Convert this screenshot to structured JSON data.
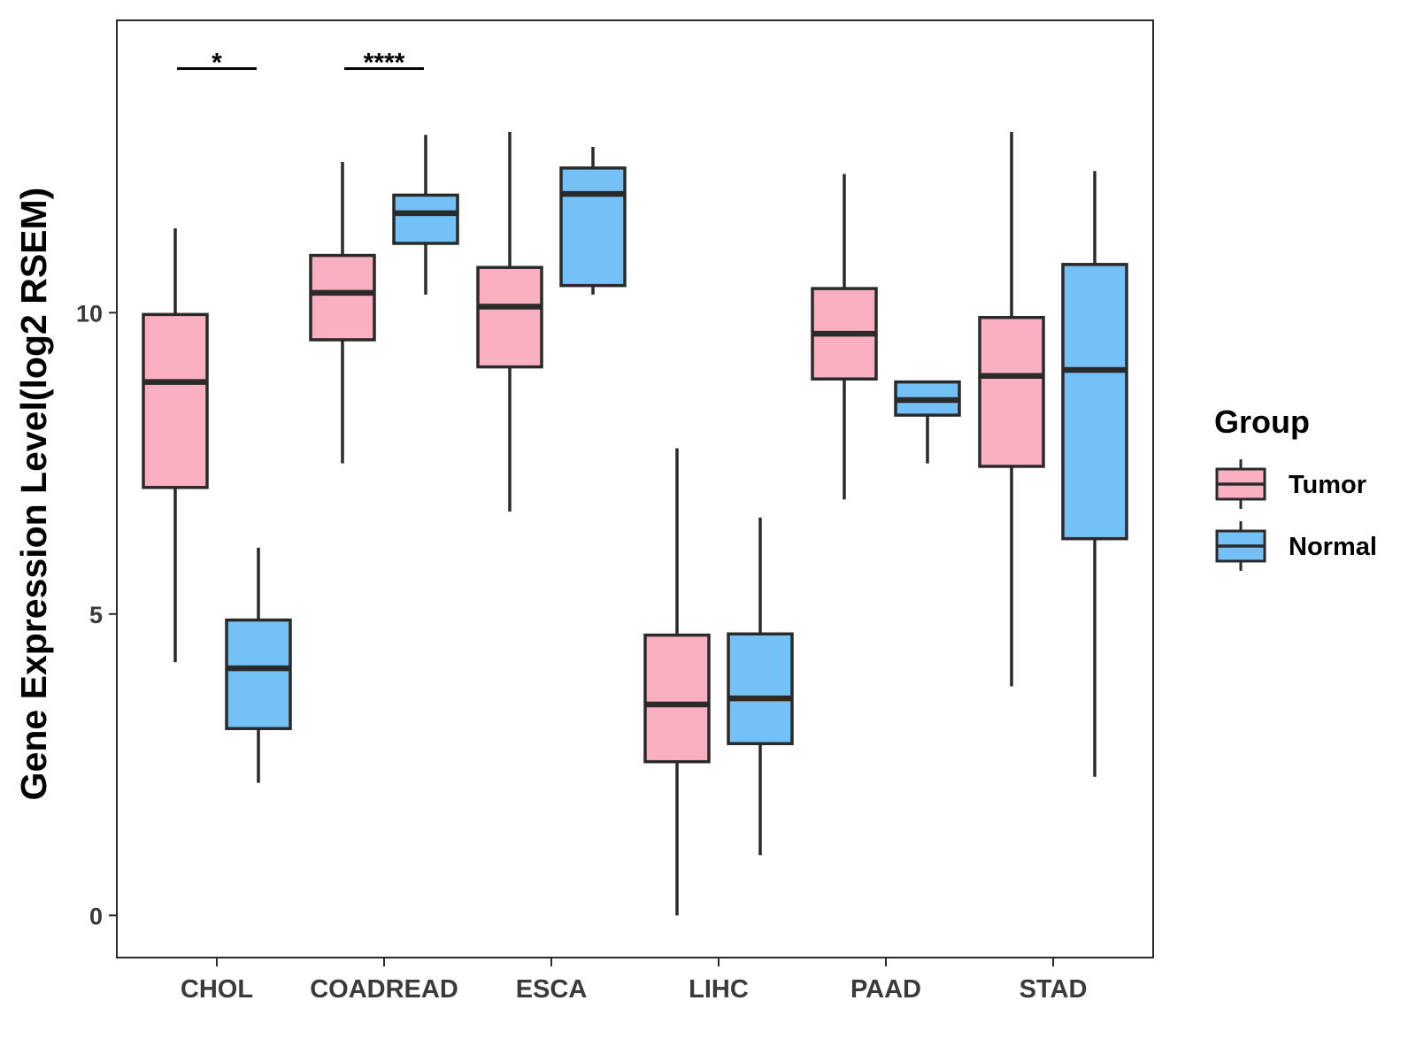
{
  "chart_data": {
    "type": "boxplot",
    "title": "",
    "xlabel": "",
    "ylabel": "Gene Expression Level(log2 RSEM)",
    "ylim": [
      -0.7,
      14.85
    ],
    "yticks": [
      0,
      5,
      10
    ],
    "grid": false,
    "categories": [
      "CHOL",
      "COADREAD",
      "ESCA",
      "LIHC",
      "PAAD",
      "STAD"
    ],
    "legend": {
      "title": "Group",
      "position": "right",
      "entries": [
        "Tumor",
        "Normal"
      ]
    },
    "colors": {
      "Tumor": "#FBB0C2",
      "Normal": "#74C1F7",
      "outline": "#2a2a2a"
    },
    "series": [
      {
        "name": "Tumor",
        "boxes": [
          {
            "category": "CHOL",
            "min": 4.2,
            "q1": 7.1,
            "median": 8.85,
            "q3": 9.97,
            "max": 11.4
          },
          {
            "category": "COADREAD",
            "min": 7.5,
            "q1": 9.55,
            "median": 10.33,
            "q3": 10.95,
            "max": 12.5
          },
          {
            "category": "ESCA",
            "min": 6.7,
            "q1": 9.1,
            "median": 10.1,
            "q3": 10.75,
            "max": 13.0
          },
          {
            "category": "LIHC",
            "min": 0.0,
            "q1": 2.55,
            "median": 3.5,
            "q3": 4.65,
            "max": 7.75
          },
          {
            "category": "PAAD",
            "min": 6.9,
            "q1": 8.9,
            "median": 9.65,
            "q3": 10.4,
            "max": 12.3
          },
          {
            "category": "STAD",
            "min": 3.8,
            "q1": 7.45,
            "median": 8.95,
            "q3": 9.92,
            "max": 13.0
          }
        ]
      },
      {
        "name": "Normal",
        "boxes": [
          {
            "category": "CHOL",
            "min": 2.2,
            "q1": 3.1,
            "median": 4.1,
            "q3": 4.9,
            "max": 6.1
          },
          {
            "category": "COADREAD",
            "min": 10.3,
            "q1": 11.15,
            "median": 11.65,
            "q3": 11.95,
            "max": 12.95
          },
          {
            "category": "ESCA",
            "min": 10.3,
            "q1": 10.45,
            "median": 11.97,
            "q3": 12.4,
            "max": 12.75
          },
          {
            "category": "LIHC",
            "min": 1.0,
            "q1": 2.85,
            "median": 3.6,
            "q3": 4.67,
            "max": 6.6
          },
          {
            "category": "PAAD",
            "min": 7.5,
            "q1": 8.3,
            "median": 8.55,
            "q3": 8.85,
            "max": 8.85
          },
          {
            "category": "STAD",
            "min": 2.3,
            "q1": 6.25,
            "median": 9.05,
            "q3": 10.8,
            "max": 12.35
          }
        ]
      }
    ],
    "annotations": [
      {
        "category": "CHOL",
        "label": "*",
        "y": 14.05
      },
      {
        "category": "COADREAD",
        "label": "****",
        "y": 14.05
      }
    ]
  }
}
